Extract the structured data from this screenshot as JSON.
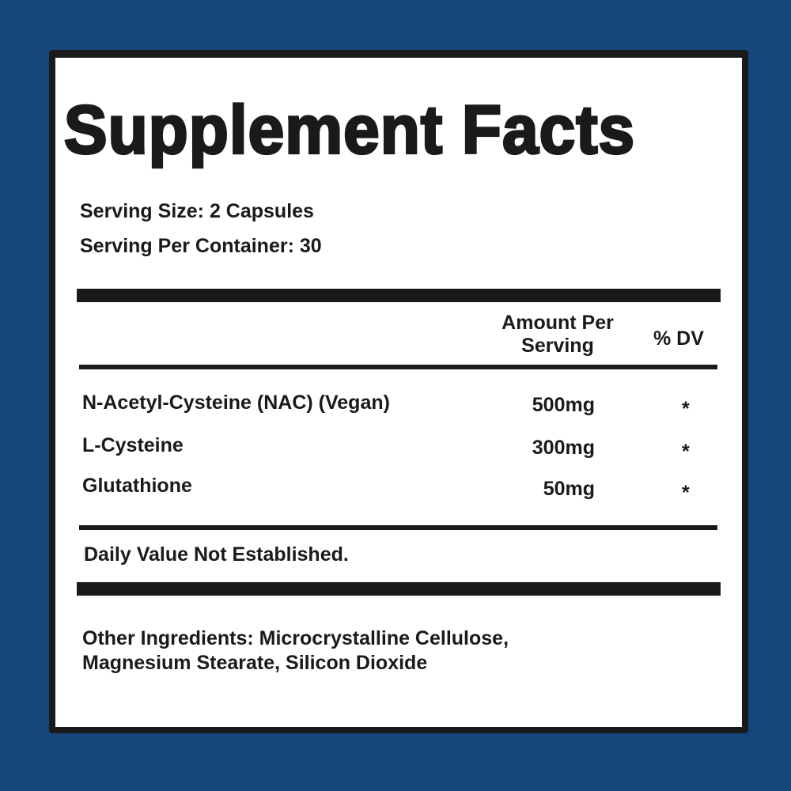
{
  "title": "Supplement Facts",
  "serving_size": "Serving Size: 2 Capsules",
  "servings_per_container": "Serving Per Container: 30",
  "header": {
    "amount_line1": "Amount Per",
    "amount_line2": "Serving",
    "dv": "% DV"
  },
  "rows": [
    {
      "name": "N-Acetyl-Cysteine (NAC) (Vegan)",
      "amount": "500mg",
      "dv": "*"
    },
    {
      "name": "L-Cysteine",
      "amount": "300mg",
      "dv": "*"
    },
    {
      "name": "Glutathione",
      "amount": "50mg",
      "dv": "*"
    }
  ],
  "footnote": "Daily Value Not Established.",
  "other_ingredients": {
    "label": "Other Ingredients:",
    "line1": " Microcrystalline Cellulose,",
    "line2": "Magnesium Stearate, Silicon Dioxide"
  },
  "colors": {
    "background": "#17477a",
    "ink": "#1a1a1a",
    "panel": "#ffffff"
  }
}
